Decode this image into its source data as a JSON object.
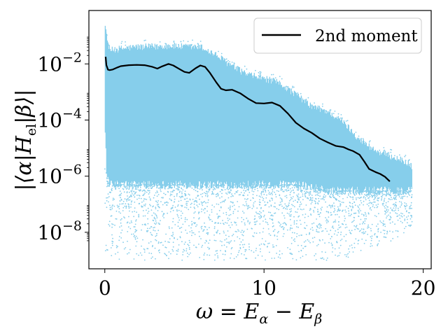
{
  "chart_data": {
    "type": "scatter",
    "xlabel": "ω = E_α − E_β",
    "ylabel": "|⟨α|H_el|β⟩|",
    "xlim": [
      -1,
      20.5
    ],
    "ylim": [
      5e-10,
      0.8
    ],
    "yscale": "log",
    "grid": false,
    "legend_position": "top-right",
    "x_ticks": [
      0,
      10,
      20
    ],
    "y_ticks": [
      1e-08,
      1e-06,
      0.0001,
      0.01
    ],
    "x_tick_labels": [
      "0",
      "10",
      "20"
    ],
    "y_tick_labels": [
      {
        "base": "10",
        "exp": "−8"
      },
      {
        "base": "10",
        "exp": "−6"
      },
      {
        "base": "10",
        "exp": "−4"
      },
      {
        "base": "10",
        "exp": "−2"
      }
    ],
    "scatter_color": "#87CEEB",
    "scatter_envelope": {
      "x": [
        0.0,
        0.1,
        0.3,
        1,
        2,
        3,
        4,
        5,
        6,
        7,
        8,
        9,
        10,
        11,
        12,
        13,
        14,
        15,
        16,
        17,
        18,
        19,
        19.3
      ],
      "upper": [
        0.3,
        0.08,
        0.03,
        0.035,
        0.04,
        0.04,
        0.045,
        0.04,
        0.04,
        0.02,
        0.008,
        0.004,
        0.003,
        0.002,
        0.0008,
        0.0003,
        0.0002,
        8e-05,
        2e-05,
        8e-06,
        5e-06,
        3e-06,
        2e-06
      ],
      "dense_lower": [
        5e-05,
        1e-06,
        5e-07,
        5e-07,
        5e-07,
        5e-07,
        5e-07,
        5e-07,
        5e-07,
        5e-07,
        5e-07,
        5e-07,
        5e-07,
        5e-07,
        5e-07,
        4e-07,
        3e-07,
        3e-07,
        3e-07,
        3e-07,
        3e-07,
        3e-07,
        3e-07
      ],
      "sparse_lower": [
        1e-09,
        1e-09,
        1e-09,
        1e-09,
        1e-09,
        1e-09,
        1e-09,
        1e-09,
        1e-09,
        1e-09,
        1e-09,
        1e-09,
        1e-09,
        1e-09,
        1e-09,
        1e-09,
        1e-09,
        1e-09,
        2e-09,
        3e-09,
        5e-09,
        1e-08,
        2e-08
      ]
    },
    "series": [
      {
        "name": "2nd moment",
        "color": "#000000",
        "x": [
          0.05,
          0.1,
          0.2,
          0.3,
          0.5,
          0.8,
          1.0,
          1.5,
          2.0,
          2.5,
          3.0,
          3.3,
          3.6,
          4.0,
          4.3,
          4.7,
          5.0,
          5.3,
          5.7,
          6.0,
          6.3,
          6.6,
          7.0,
          7.3,
          7.6,
          8.0,
          8.5,
          9.0,
          9.5,
          10.0,
          10.5,
          11.0,
          11.5,
          12.0,
          12.5,
          13.0,
          13.5,
          14.0,
          14.5,
          15.0,
          15.3,
          15.6,
          16.0,
          16.3,
          16.6,
          17.0,
          17.3,
          17.6,
          17.9
        ],
        "y": [
          0.018,
          0.009,
          0.0062,
          0.006,
          0.0063,
          0.0075,
          0.0083,
          0.009,
          0.0092,
          0.009,
          0.0078,
          0.0068,
          0.0082,
          0.01,
          0.0088,
          0.0065,
          0.0052,
          0.0048,
          0.007,
          0.0088,
          0.0078,
          0.0048,
          0.0022,
          0.0013,
          0.00115,
          0.0012,
          0.0009,
          0.00058,
          0.0004,
          0.00039,
          0.00042,
          0.00032,
          0.00017,
          8e-05,
          5e-05,
          3.5e-05,
          2.2e-05,
          1.6e-05,
          1.2e-05,
          1.08e-05,
          9e-06,
          7.8e-06,
          5.8e-06,
          3.3e-06,
          1.8e-06,
          1.4e-06,
          1.2e-06,
          9.5e-07,
          6.5e-07
        ]
      }
    ]
  }
}
